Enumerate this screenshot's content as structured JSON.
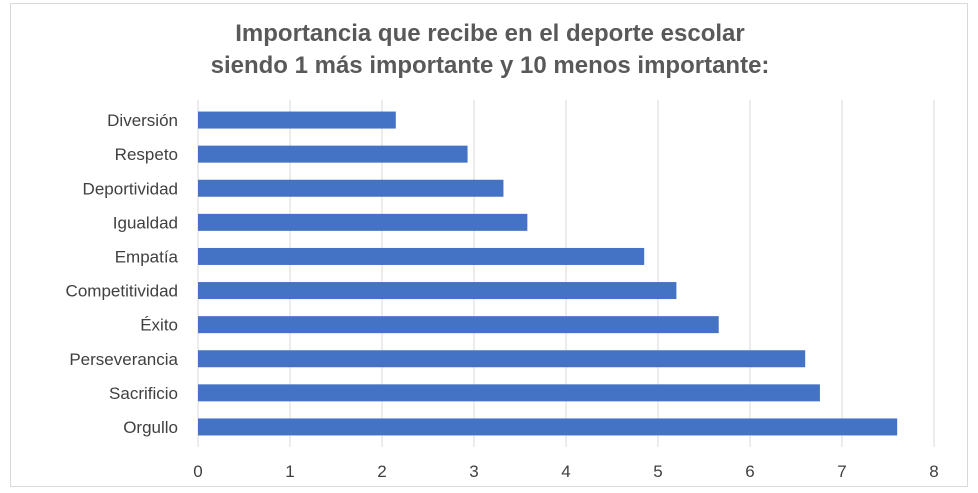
{
  "chart_data": {
    "type": "bar",
    "orientation": "horizontal",
    "title_lines": [
      "Importancia que recibe en el deporte escolar",
      "siendo 1 más importante y 10 menos importante:"
    ],
    "categories": [
      "Diversión",
      "Respeto",
      "Deportividad",
      "Igualdad",
      "Empatía",
      "Competitividad",
      "Éxito",
      "Perseverancia",
      "Sacrificio",
      "Orgullo"
    ],
    "values": [
      2.15,
      2.93,
      3.32,
      3.58,
      4.85,
      5.2,
      5.66,
      6.6,
      6.76,
      7.6
    ],
    "x_ticks": [
      "0",
      "1",
      "2",
      "3",
      "4",
      "5",
      "6",
      "7",
      "8"
    ],
    "xlim": [
      0,
      8
    ],
    "grid": "vertical",
    "legend": "none",
    "bar_color": "#4472c4",
    "xlabel": "",
    "ylabel": ""
  }
}
